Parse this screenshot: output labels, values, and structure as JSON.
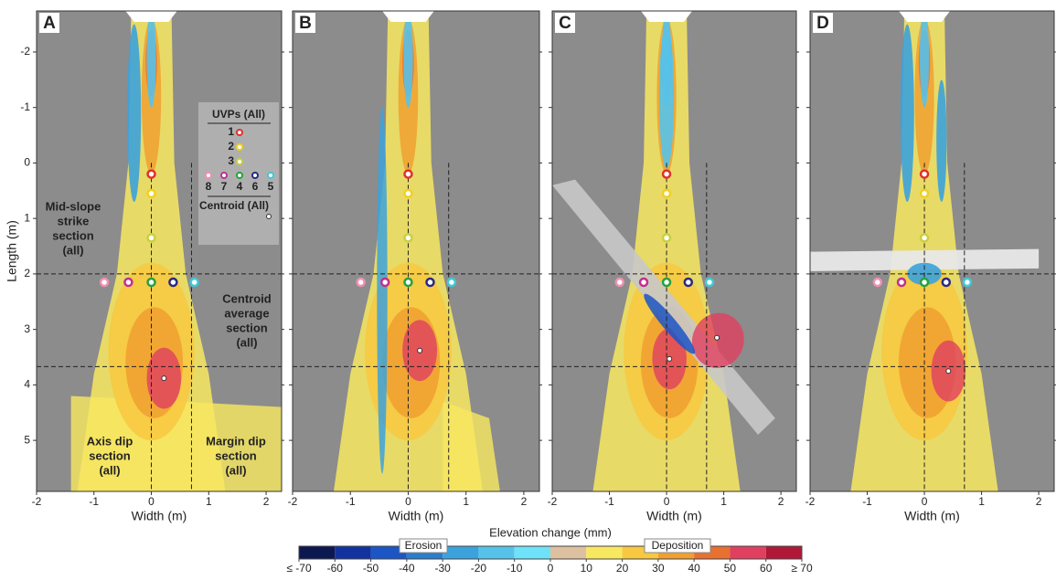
{
  "axes": {
    "xlabel": "Width (m)",
    "ylabel": "Length (m)",
    "xlim": [
      -2,
      2.27
    ],
    "xticks": [
      -2,
      -1,
      0,
      1,
      2
    ],
    "ylim": [
      -2.74,
      5.92
    ],
    "yticks": [
      -2,
      -1,
      0,
      1,
      2,
      3,
      4,
      5
    ]
  },
  "panels": [
    {
      "label": "A",
      "centroids": [
        {
          "x": 0.22,
          "y": 3.88
        }
      ]
    },
    {
      "label": "B",
      "centroids": [
        {
          "x": 0.2,
          "y": 3.38
        }
      ]
    },
    {
      "label": "C",
      "centroids": [
        {
          "x": 0.05,
          "y": 3.53
        },
        {
          "x": 0.88,
          "y": 3.15
        }
      ]
    },
    {
      "label": "D",
      "centroids": [
        {
          "x": 0.42,
          "y": 3.75
        }
      ]
    }
  ],
  "sections": {
    "axis_x": 0,
    "margin_x": 0.7,
    "strike_y": 2,
    "centroid_y": 3.67
  },
  "uvps": {
    "title": "UVPs (All)",
    "centroid_label": "Centroid (All)",
    "points": [
      {
        "name": "1",
        "color": "#e0302a",
        "x": 0,
        "y": 0.2
      },
      {
        "name": "2",
        "color": "#f0d020",
        "x": 0,
        "y": 0.55
      },
      {
        "name": "3",
        "color": "#c8d040",
        "x": 0,
        "y": 1.35
      },
      {
        "name": "4",
        "color": "#28a040",
        "x": 0,
        "y": 2.15
      },
      {
        "name": "5",
        "color": "#40c8d8",
        "x": 0.75,
        "y": 2.15
      },
      {
        "name": "6",
        "color": "#2a2a80",
        "x": 0.38,
        "y": 2.15
      },
      {
        "name": "7",
        "color": "#c03090",
        "x": -0.4,
        "y": 2.15
      },
      {
        "name": "8",
        "color": "#f090b0",
        "x": -0.82,
        "y": 2.15
      }
    ]
  },
  "annotations": [
    {
      "lines": [
        "Mid-slope",
        "strike",
        "section",
        "(all)"
      ]
    },
    {
      "lines": [
        "Centroid",
        "average",
        "section",
        "(all)"
      ]
    },
    {
      "lines": [
        "Axis dip",
        "section",
        "(all)"
      ]
    },
    {
      "lines": [
        "Margin dip",
        "section",
        "(all)"
      ]
    }
  ],
  "colorbar": {
    "title": "Elevation change (mm)",
    "erosion_label": "Erosion",
    "deposition_label": "Deposition",
    "ticks": [
      {
        "value": -70,
        "label": "≤ -70"
      },
      -60,
      -50,
      -40,
      -30,
      -20,
      -10,
      0,
      10,
      20,
      30,
      40,
      50,
      60,
      {
        "value": 70,
        "label": "≥ 70"
      }
    ],
    "colors": [
      "#0c1850",
      "#1232a0",
      "#1c55c4",
      "#2a7ccc",
      "#3ca2dc",
      "#56c2ea",
      "#6ee2f8",
      "#dcc0a0",
      "#f8e860",
      "#f8c840",
      "#f0a030",
      "#e87030",
      "#e04060",
      "#b01838"
    ]
  }
}
